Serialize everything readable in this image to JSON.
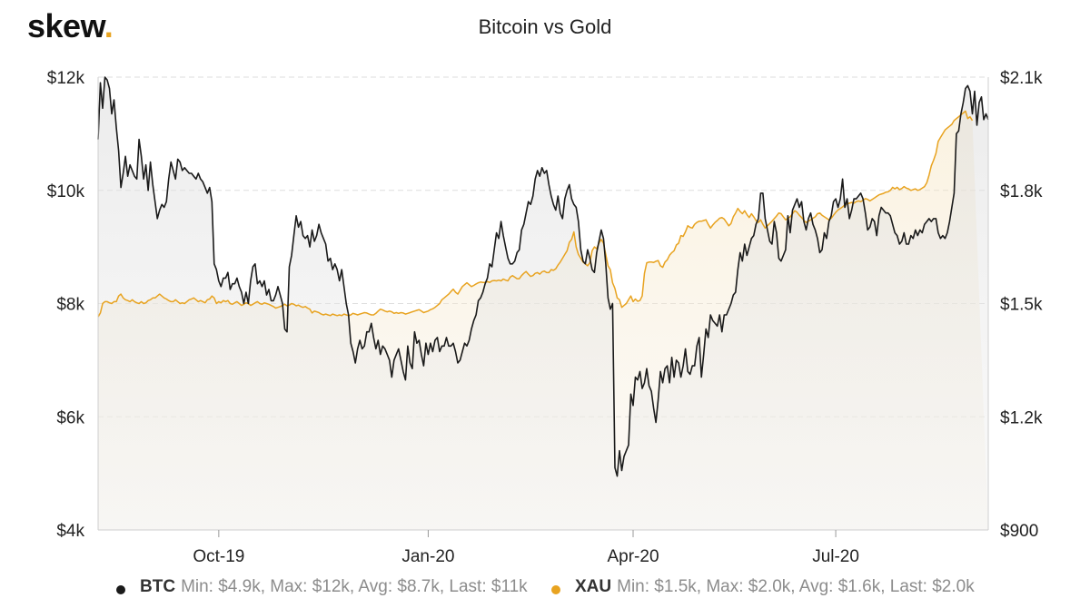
{
  "logo": {
    "text": "skew",
    "dot": "."
  },
  "chart_data": {
    "type": "line",
    "title": "Bitcoin vs Gold",
    "x_ticks": [
      "Oct-19",
      "Jan-20",
      "Apr-20",
      "Jul-20"
    ],
    "x_tick_index": [
      53,
      145,
      235,
      324
    ],
    "left_axis": {
      "ticks": [
        "$4k",
        "$6k",
        "$8k",
        "$10k",
        "$12k"
      ],
      "min": 4000,
      "max": 12000
    },
    "right_axis": {
      "ticks": [
        "$900",
        "$1.2k",
        "$1.5k",
        "$1.8k",
        "$2.1k"
      ],
      "min": 900,
      "max": 2100
    },
    "grid": true,
    "legend_position": "bottom",
    "series": [
      {
        "name": "BTC",
        "axis": "left",
        "color": "#1a1a1a",
        "legend_text": "Min: $4.9k, Max: $12k, Avg: $8.7k, Last: $11k",
        "values": [
          10900,
          11900,
          11450,
          12000,
          11950,
          11800,
          11350,
          11600,
          11100,
          10700,
          10050,
          10300,
          10600,
          10250,
          10450,
          10350,
          10250,
          10200,
          10900,
          10600,
          10200,
          10450,
          10000,
          10500,
          10100,
          9800,
          9500,
          9650,
          9750,
          9700,
          9800,
          10200,
          10500,
          10350,
          10200,
          10550,
          10500,
          10350,
          10400,
          10350,
          10300,
          10300,
          10250,
          10200,
          10300,
          10200,
          10150,
          10050,
          9950,
          10050,
          9800,
          8700,
          8600,
          8400,
          8300,
          8450,
          8450,
          8550,
          8250,
          8350,
          8350,
          8450,
          8300,
          8200,
          8000,
          8200,
          8000,
          8400,
          8650,
          8700,
          8350,
          8400,
          8300,
          8400,
          8150,
          8250,
          8050,
          8050,
          8150,
          8300,
          8150,
          8000,
          7550,
          7500,
          8650,
          8850,
          9200,
          9550,
          9350,
          9450,
          9200,
          9150,
          9200,
          9000,
          9300,
          9100,
          9200,
          9400,
          9250,
          9150,
          9050,
          8750,
          8800,
          8600,
          8700,
          8600,
          8400,
          8600,
          8300,
          8000,
          7800,
          7300,
          7150,
          6950,
          7200,
          7350,
          7200,
          7250,
          7500,
          7500,
          7650,
          7400,
          7200,
          7350,
          7100,
          7250,
          7200,
          7100,
          7000,
          6700,
          7000,
          7100,
          7200,
          7000,
          6800,
          6650,
          7250,
          6950,
          6850,
          7500,
          7300,
          7350,
          7100,
          6900,
          7300,
          7100,
          7300,
          7150,
          7350,
          7400,
          7150,
          7250,
          7250,
          7400,
          7250,
          7250,
          7300,
          7150,
          6950,
          7000,
          7150,
          7300,
          7250,
          7350,
          7550,
          7700,
          7800,
          8050,
          8100,
          8200,
          8350,
          8450,
          8700,
          8650,
          8950,
          9250,
          9150,
          9450,
          9200,
          9000,
          8800,
          8700,
          8700,
          8750,
          8900,
          8950,
          9300,
          9400,
          9600,
          9800,
          9750,
          9900,
          10200,
          10350,
          10250,
          10400,
          10300,
          10350,
          10100,
          9900,
          9750,
          9650,
          9900,
          9600,
          9500,
          9850,
          10000,
          10100,
          9850,
          9750,
          9700,
          9450,
          8950,
          8750,
          8700,
          8950,
          8800,
          8600,
          8550,
          8900,
          9100,
          9300,
          9150,
          8700,
          8100,
          7900,
          8000,
          5100,
          4950,
          5400,
          5050,
          5300,
          5400,
          5500,
          6400,
          6200,
          6700,
          6650,
          6800,
          6500,
          6600,
          6850,
          6550,
          6450,
          6150,
          5900,
          6300,
          6800,
          6600,
          6850,
          6900,
          6600,
          7050,
          6700,
          7000,
          6950,
          6700,
          6900,
          7200,
          6800,
          6750,
          6900,
          6900,
          7250,
          7400,
          6700,
          7100,
          7550,
          7400,
          7800,
          7700,
          7650,
          7600,
          7800,
          7500,
          7800,
          7800,
          7900,
          8000,
          8150,
          8200,
          8600,
          8900,
          8750,
          9050,
          8850,
          9000,
          9150,
          9200,
          9400,
          9500,
          9950,
          9950,
          9500,
          9300,
          9100,
          9050,
          9450,
          9250,
          8800,
          8750,
          8850,
          8950,
          9550,
          9250,
          9650,
          9750,
          9850,
          9700,
          9800,
          9450,
          9300,
          9500,
          9600,
          9400,
          9300,
          9150,
          8900,
          8950,
          9250,
          9150,
          9450,
          9550,
          9800,
          9850,
          9700,
          9850,
          10200,
          9700,
          9850,
          9500,
          9650,
          9850,
          9850,
          9900,
          9950,
          9850,
          9600,
          9300,
          9350,
          9500,
          9450,
          9200,
          9550,
          9700,
          9650,
          9600,
          9600,
          9550,
          9400,
          9250,
          9200,
          9050,
          9100,
          9250,
          9050,
          9050,
          9200,
          9150,
          9300,
          9200,
          9300,
          9250,
          9400,
          9450,
          9500,
          9450,
          9500,
          9500,
          9250,
          9150,
          9200,
          9150,
          9250,
          9450,
          9700,
          9950,
          11000,
          11050,
          11350,
          11550,
          11800,
          11850,
          11750,
          11350,
          11750,
          11150,
          11550,
          11650,
          11250,
          11350,
          11250
        ]
      },
      {
        "name": "XAU",
        "axis": "right",
        "color": "#e8a320",
        "legend_text": "Min: $1.5k, Max: $2.0k, Avg: $1.6k, Last: $2.0k",
        "values": [
          1465,
          1475,
          1500,
          1505,
          1505,
          1502,
          1500,
          1505,
          1505,
          1520,
          1525,
          1515,
          1510,
          1508,
          1505,
          1510,
          1505,
          1502,
          1500,
          1505,
          1500,
          1502,
          1508,
          1510,
          1515,
          1515,
          1520,
          1525,
          1520,
          1515,
          1512,
          1508,
          1505,
          1505,
          1510,
          1505,
          1500,
          1502,
          1500,
          1505,
          1510,
          1512,
          1515,
          1510,
          1505,
          1508,
          1505,
          1502,
          1510,
          1512,
          1520,
          1515,
          1500,
          1505,
          1502,
          1508,
          1505,
          1508,
          1500,
          1498,
          1502,
          1505,
          1500,
          1495,
          1498,
          1502,
          1500,
          1495,
          1498,
          1502,
          1505,
          1500,
          1498,
          1502,
          1500,
          1498,
          1495,
          1492,
          1488,
          1490,
          1492,
          1495,
          1498,
          1494,
          1496,
          1500,
          1498,
          1494,
          1496,
          1492,
          1490,
          1492,
          1488,
          1485,
          1475,
          1480,
          1478,
          1476,
          1472,
          1470,
          1472,
          1470,
          1468,
          1472,
          1470,
          1468,
          1470,
          1468,
          1472,
          1470,
          1468,
          1470,
          1474,
          1472,
          1470,
          1472,
          1474,
          1476,
          1475,
          1472,
          1470,
          1470,
          1474,
          1480,
          1485,
          1483,
          1480,
          1478,
          1480,
          1478,
          1474,
          1476,
          1474,
          1476,
          1475,
          1472,
          1474,
          1476,
          1478,
          1480,
          1482,
          1484,
          1480,
          1476,
          1478,
          1480,
          1484,
          1486,
          1490,
          1495,
          1500,
          1510,
          1515,
          1520,
          1525,
          1532,
          1538,
          1530,
          1525,
          1535,
          1545,
          1550,
          1555,
          1550,
          1545,
          1548,
          1552,
          1555,
          1557,
          1556,
          1556,
          1558,
          1556,
          1560,
          1561,
          1560,
          1562,
          1560,
          1565,
          1562,
          1560,
          1570,
          1574,
          1570,
          1566,
          1566,
          1574,
          1580,
          1585,
          1578,
          1572,
          1574,
          1580,
          1582,
          1578,
          1584,
          1586,
          1582,
          1582,
          1590,
          1588,
          1592,
          1602,
          1610,
          1620,
          1630,
          1640,
          1662,
          1670,
          1690,
          1650,
          1630,
          1620,
          1610,
          1605,
          1600,
          1608,
          1640,
          1650,
          1645,
          1660,
          1670,
          1660,
          1630,
          1600,
          1590,
          1555,
          1540,
          1515,
          1510,
          1490,
          1495,
          1500,
          1510,
          1520,
          1505,
          1512,
          1506,
          1508,
          1520,
          1580,
          1608,
          1610,
          1610,
          1609,
          1612,
          1614,
          1600,
          1596,
          1610,
          1616,
          1628,
          1635,
          1640,
          1655,
          1660,
          1680,
          1678,
          1690,
          1706,
          1702,
          1700,
          1710,
          1715,
          1718,
          1718,
          1720,
          1722,
          1710,
          1700,
          1708,
          1715,
          1720,
          1726,
          1728,
          1724,
          1715,
          1706,
          1712,
          1730,
          1740,
          1752,
          1744,
          1738,
          1746,
          1736,
          1728,
          1738,
          1730,
          1720,
          1715,
          1722,
          1710,
          1700,
          1706,
          1712,
          1718,
          1725,
          1732,
          1740,
          1738,
          1730,
          1722,
          1726,
          1730,
          1738,
          1746,
          1742,
          1734,
          1728,
          1720,
          1715,
          1718,
          1722,
          1726,
          1730,
          1738,
          1740,
          1734,
          1730,
          1726,
          1722,
          1726,
          1734,
          1742,
          1748,
          1752,
          1756,
          1762,
          1764,
          1766,
          1768,
          1766,
          1770,
          1772,
          1770,
          1774,
          1778,
          1776,
          1772,
          1776,
          1780,
          1784,
          1788,
          1790,
          1792,
          1795,
          1796,
          1800,
          1808,
          1804,
          1808,
          1802,
          1805,
          1810,
          1806,
          1804,
          1800,
          1802,
          1804,
          1800,
          1802,
          1806,
          1810,
          1820,
          1840,
          1865,
          1880,
          1898,
          1930,
          1940,
          1950,
          1960,
          1965,
          1970,
          1975,
          1985,
          1990,
          1995,
          2000,
          2005,
          2010,
          1990,
          1995,
          1985
        ]
      }
    ]
  }
}
